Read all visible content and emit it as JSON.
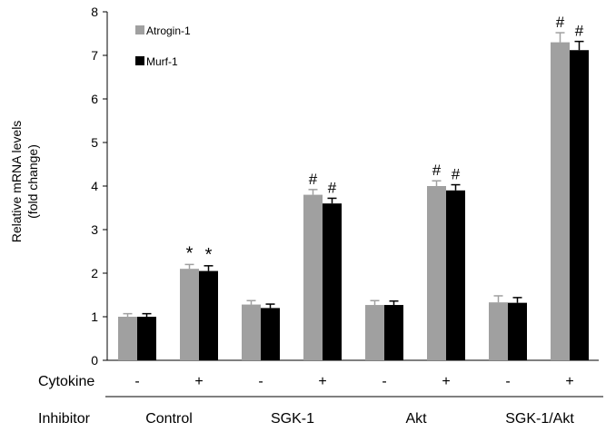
{
  "chart_data": {
    "type": "bar",
    "ylabel_lines": [
      "Relative mRNA  levels",
      "(fold change)"
    ],
    "ylim": [
      0,
      8
    ],
    "yticks": [
      "0",
      "1",
      "2",
      "3",
      "4",
      "5",
      "6",
      "7",
      "8"
    ],
    "cytokine_label": "Cytokine",
    "inhibitor_label": "Inhibitor",
    "categories": [
      "-",
      "+",
      "-",
      "+",
      "-",
      "+",
      "-",
      "+"
    ],
    "groups": [
      "Control",
      "SGK-1",
      "Akt",
      "SGK-1/Akt"
    ],
    "legend_position": "top-left",
    "series": [
      {
        "name": "Atrogin-1",
        "color": "#a0a0a0",
        "values": [
          1.0,
          2.1,
          1.28,
          3.8,
          1.27,
          4.0,
          1.33,
          7.3
        ],
        "errors": [
          0.07,
          0.1,
          0.09,
          0.12,
          0.1,
          0.12,
          0.15,
          0.22
        ],
        "annotations": [
          "",
          "*",
          "",
          "#",
          "",
          "#",
          "",
          "#"
        ]
      },
      {
        "name": "Murf-1",
        "color": "#000000",
        "values": [
          1.0,
          2.05,
          1.2,
          3.6,
          1.27,
          3.9,
          1.32,
          7.12
        ],
        "errors": [
          0.07,
          0.12,
          0.09,
          0.12,
          0.09,
          0.13,
          0.12,
          0.2
        ],
        "annotations": [
          "",
          "*",
          "",
          "#",
          "",
          "#",
          "",
          "#"
        ]
      }
    ]
  }
}
